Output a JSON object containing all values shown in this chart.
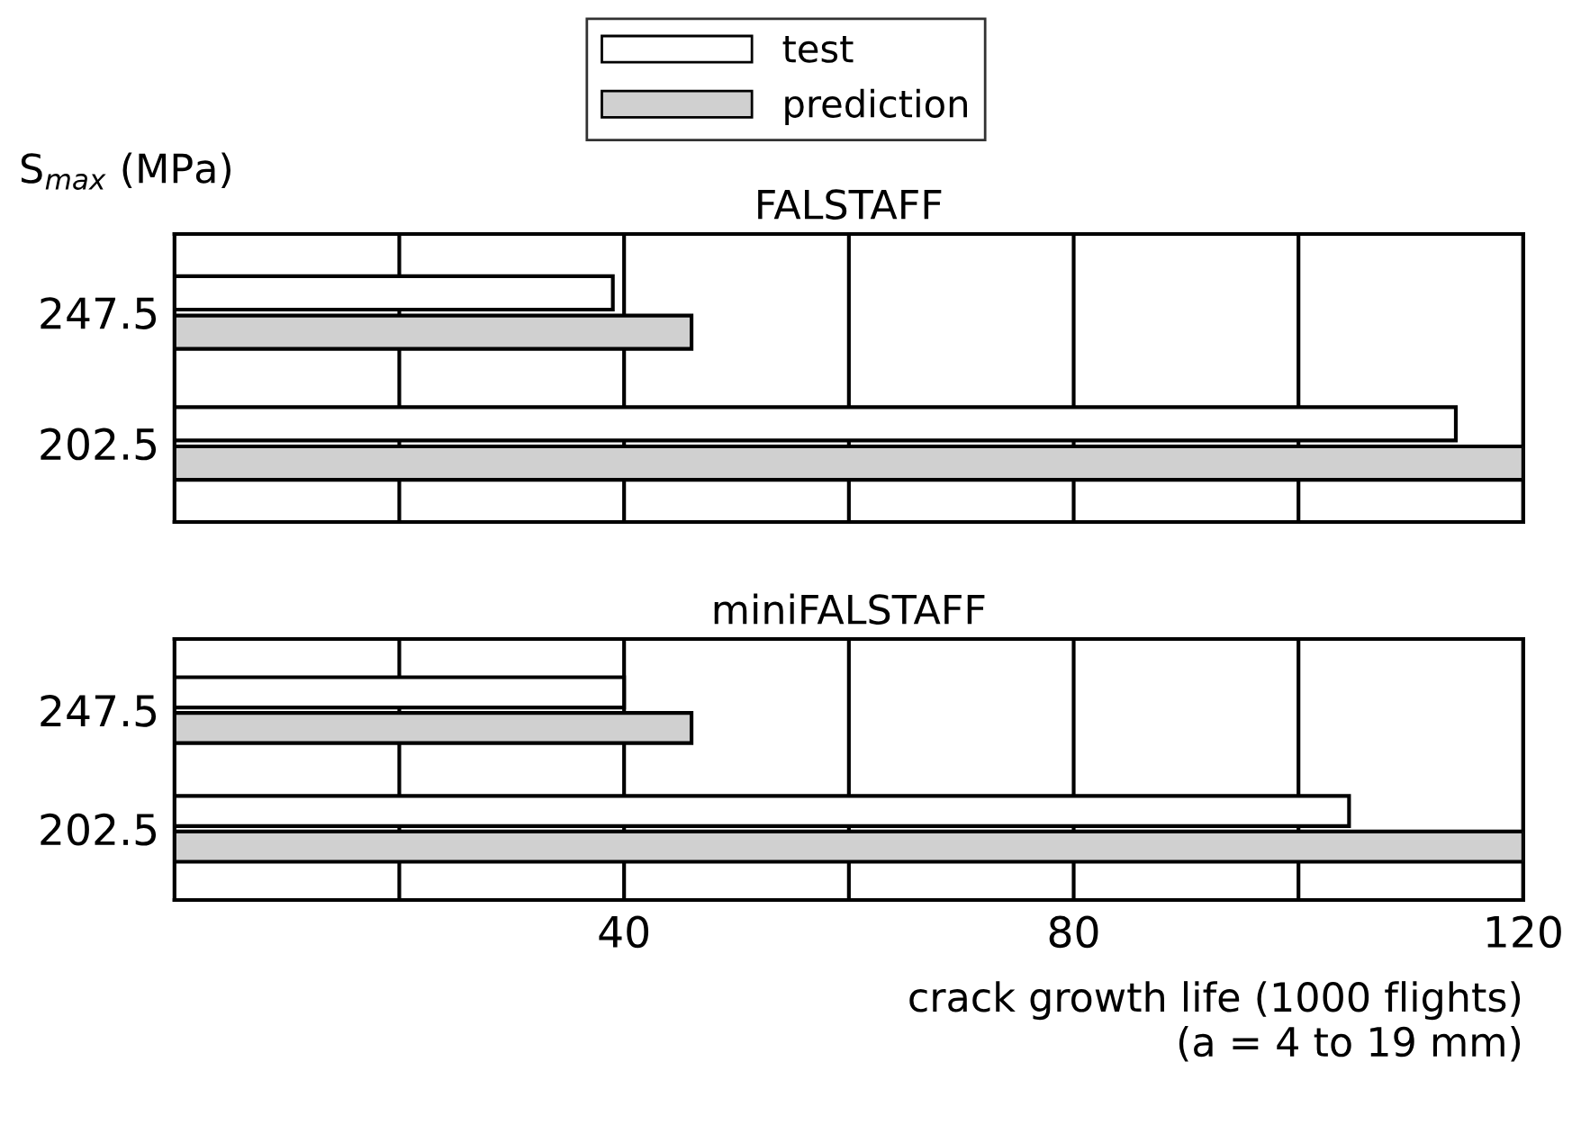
{
  "chart_data": [
    {
      "type": "bar",
      "orientation": "horizontal",
      "title": "FALSTAFF",
      "ylabel": "S$_{max}$ (MPa)",
      "categories": [
        "247.5",
        "202.5"
      ],
      "series": [
        {
          "name": "test",
          "color": "#ffffff",
          "values": [
            39,
            114
          ]
        },
        {
          "name": "prediction",
          "color": "#d0d0d0",
          "values": [
            46,
            120
          ]
        }
      ],
      "xlim": [
        0,
        120
      ],
      "xticks": [
        {
          "value": 20,
          "label": null
        },
        {
          "value": 40,
          "label": null
        },
        {
          "value": 60,
          "label": null
        },
        {
          "value": 80,
          "label": null
        },
        {
          "value": 100,
          "label": null
        },
        {
          "value": 120,
          "label": null
        }
      ],
      "grid": "x",
      "legend": "top",
      "tick_labels": "y"
    },
    {
      "type": "bar",
      "orientation": "horizontal",
      "title": "miniFALSTAFF",
      "xlabel": "crack growth life (1000 flights)\n(a = 4 to 19 mm)",
      "categories": [
        "247.5",
        "202.5"
      ],
      "series": [
        {
          "color": "#ffffff",
          "values": [
            40,
            104.5
          ]
        },
        {
          "color": "#d0d0d0",
          "values": [
            46,
            120
          ]
        }
      ],
      "xlim": [
        0,
        120
      ],
      "xticks": [
        {
          "value": 20,
          "label": null
        },
        40,
        {
          "value": 60,
          "label": null
        },
        80,
        {
          "value": 100,
          "label": null
        },
        120
      ],
      "grid": "x"
    }
  ]
}
